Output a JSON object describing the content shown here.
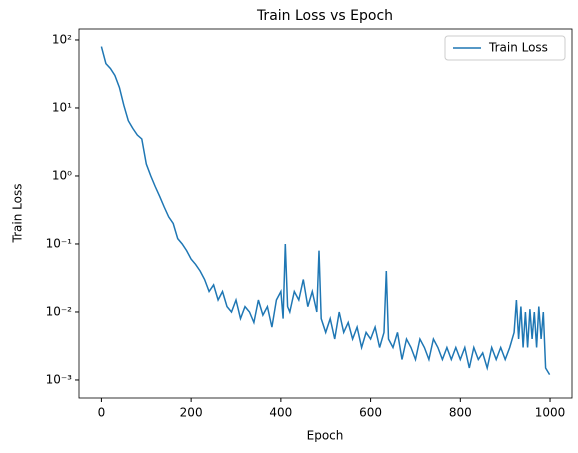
{
  "chart_data": {
    "type": "line",
    "title": "Train Loss vs Epoch",
    "xlabel": "Epoch",
    "ylabel": "Train Loss",
    "x": [
      0,
      10,
      20,
      30,
      40,
      50,
      60,
      70,
      80,
      90,
      100,
      110,
      120,
      130,
      140,
      150,
      160,
      170,
      180,
      190,
      200,
      210,
      220,
      230,
      240,
      250,
      260,
      270,
      280,
      290,
      300,
      310,
      320,
      330,
      340,
      350,
      360,
      370,
      380,
      390,
      400,
      405,
      410,
      415,
      420,
      430,
      440,
      450,
      460,
      470,
      480,
      485,
      490,
      500,
      510,
      520,
      530,
      540,
      550,
      560,
      570,
      580,
      590,
      600,
      610,
      620,
      630,
      635,
      640,
      650,
      660,
      670,
      680,
      690,
      700,
      710,
      720,
      730,
      740,
      750,
      760,
      770,
      780,
      790,
      800,
      810,
      820,
      830,
      840,
      850,
      860,
      870,
      880,
      890,
      900,
      910,
      920,
      925,
      930,
      935,
      940,
      945,
      950,
      955,
      960,
      965,
      970,
      975,
      980,
      985,
      990,
      999
    ],
    "series": [
      {
        "name": "Train Loss",
        "color": "#1f77b4",
        "values": [
          80,
          45,
          38,
          30,
          20,
          11,
          6.5,
          5,
          4,
          3.5,
          1.5,
          1.0,
          0.7,
          0.5,
          0.35,
          0.25,
          0.2,
          0.12,
          0.1,
          0.08,
          0.06,
          0.05,
          0.04,
          0.03,
          0.02,
          0.025,
          0.015,
          0.02,
          0.012,
          0.01,
          0.015,
          0.008,
          0.012,
          0.01,
          0.007,
          0.015,
          0.009,
          0.012,
          0.006,
          0.015,
          0.02,
          0.008,
          0.1,
          0.012,
          0.01,
          0.02,
          0.015,
          0.03,
          0.012,
          0.02,
          0.01,
          0.08,
          0.008,
          0.005,
          0.008,
          0.004,
          0.01,
          0.005,
          0.007,
          0.004,
          0.006,
          0.003,
          0.005,
          0.004,
          0.006,
          0.003,
          0.005,
          0.04,
          0.004,
          0.003,
          0.005,
          0.002,
          0.004,
          0.003,
          0.002,
          0.004,
          0.003,
          0.002,
          0.004,
          0.003,
          0.002,
          0.003,
          0.002,
          0.003,
          0.002,
          0.003,
          0.0015,
          0.003,
          0.002,
          0.0025,
          0.0015,
          0.003,
          0.002,
          0.003,
          0.002,
          0.003,
          0.005,
          0.015,
          0.004,
          0.012,
          0.003,
          0.01,
          0.003,
          0.011,
          0.004,
          0.01,
          0.003,
          0.012,
          0.004,
          0.01,
          0.0015,
          0.0012
        ]
      }
    ],
    "xlim": [
      -49.95,
      1048.95
    ],
    "xticks": [
      0,
      200,
      400,
      600,
      800,
      1000
    ],
    "ylim": [
      145,
      0.000543
    ],
    "log_y": true,
    "yticks": [
      {
        "value": 100,
        "label": "10²"
      },
      {
        "value": 10,
        "label": "10¹"
      },
      {
        "value": 1,
        "label": "10⁰"
      },
      {
        "value": 0.1,
        "label": "10⁻¹"
      },
      {
        "value": 0.01,
        "label": "10⁻²"
      },
      {
        "value": 0.001,
        "label": "10⁻³"
      }
    ],
    "legend": "upper right",
    "grid": false
  }
}
